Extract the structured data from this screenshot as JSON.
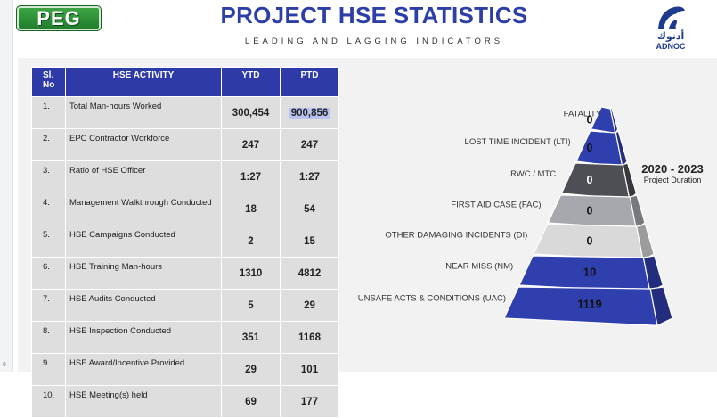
{
  "header": {
    "logo_left": "PEG",
    "title": "PROJECT HSE STATISTICS",
    "subtitle": "LEADING AND LAGGING INDICATORS",
    "logo_right_arabic": "أدنوك",
    "logo_right": "ADNOC"
  },
  "table": {
    "columns": {
      "no": "Sl. No",
      "activity": "HSE ACTIVITY",
      "ytd": "YTD",
      "ptd": "PTD"
    },
    "rows": [
      {
        "no": "1.",
        "activity": "Total Man-hours Worked",
        "ytd": "300,454",
        "ptd": "900,856"
      },
      {
        "no": "2.",
        "activity": "EPC Contractor Workforce",
        "ytd": "247",
        "ptd": "247"
      },
      {
        "no": "3.",
        "activity": "Ratio of HSE Officer",
        "ytd": "1:27",
        "ptd": "1:27"
      },
      {
        "no": "4.",
        "activity": "Management Walkthrough Conducted",
        "ytd": "18",
        "ptd": "54"
      },
      {
        "no": "5.",
        "activity": "HSE Campaigns Conducted",
        "ytd": "2",
        "ptd": "15"
      },
      {
        "no": "6.",
        "activity": "HSE Training Man-hours",
        "ytd": "1310",
        "ptd": "4812"
      },
      {
        "no": "7.",
        "activity": "HSE Audits Conducted",
        "ytd": "5",
        "ptd": "29"
      },
      {
        "no": "8.",
        "activity": "HSE Inspection Conducted",
        "ytd": "351",
        "ptd": "1168"
      },
      {
        "no": "9.",
        "activity": "HSE Award/Incentive Provided",
        "ytd": "29",
        "ptd": "101"
      },
      {
        "no": "10.",
        "activity": "HSE Meeting(s) held",
        "ytd": "69",
        "ptd": "177"
      }
    ]
  },
  "pyramid": {
    "levels": [
      {
        "label": "FATALITY",
        "value": "0",
        "color": "#2f3fae"
      },
      {
        "label": "LOST TIME INCIDENT (LTI)",
        "value": "0",
        "color": "#2f3fae"
      },
      {
        "label": "RWC / MTC",
        "value": "0",
        "color": "#4d4f55"
      },
      {
        "label": "FIRST AID CASE (FAC)",
        "value": "0",
        "color": "#a6a8ad"
      },
      {
        "label": "OTHER DAMAGING INCIDENTS (DI)",
        "value": "0",
        "color": "#d9d9d9"
      },
      {
        "label": "NEAR MISS (NM)",
        "value": "10",
        "color": "#2f3fae"
      },
      {
        "label": "UNSAFE ACTS & CONDITIONS (UAC)",
        "value": "1119",
        "color": "#2f3fae"
      }
    ],
    "period": "2020 - 2023",
    "period_caption": "Project Duration"
  },
  "footer_mark": "6"
}
